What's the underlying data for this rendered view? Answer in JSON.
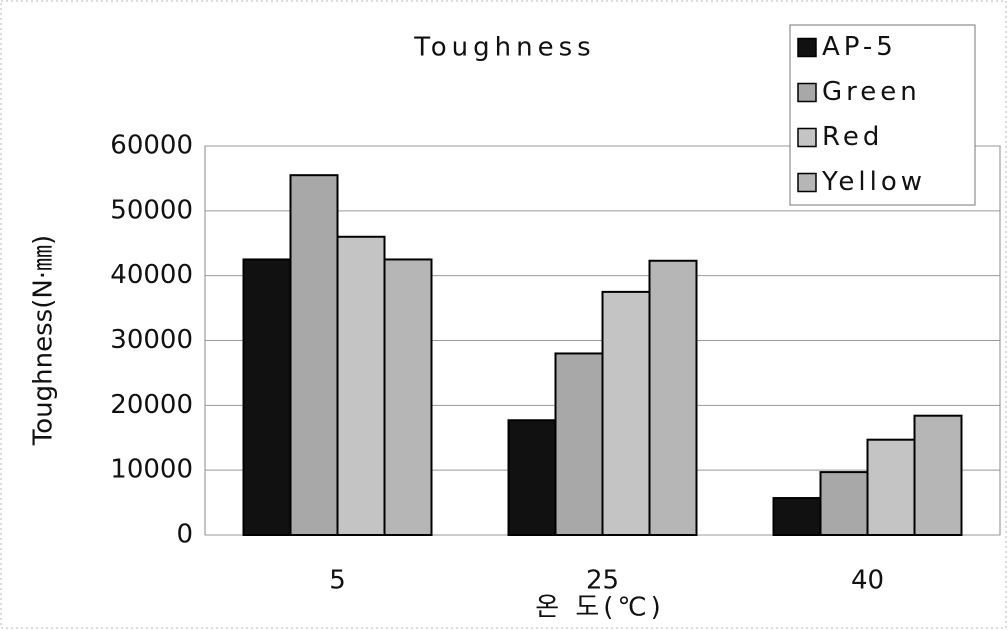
{
  "chart_data": {
    "type": "bar",
    "title": "Toughness",
    "x_label": "온 도(℃)",
    "y_label": "Toughness(N·㎜)",
    "categories": [
      "5",
      "25",
      "40"
    ],
    "series": [
      {
        "name": "AP-5",
        "color": "#111111",
        "values": [
          42500,
          17700,
          5700
        ]
      },
      {
        "name": "Green",
        "color": "#a8a8a8",
        "values": [
          55500,
          28000,
          9700
        ]
      },
      {
        "name": "Red",
        "color": "#c4c4c4",
        "values": [
          46000,
          37500,
          14700
        ]
      },
      {
        "name": "Yellow",
        "color": "#b6b6b6",
        "values": [
          42500,
          42300,
          18400
        ]
      }
    ],
    "ylim": [
      0,
      60000
    ],
    "yticks": [
      0,
      10000,
      20000,
      30000,
      40000,
      50000,
      60000
    ],
    "grid": true,
    "legend": "upper right"
  }
}
